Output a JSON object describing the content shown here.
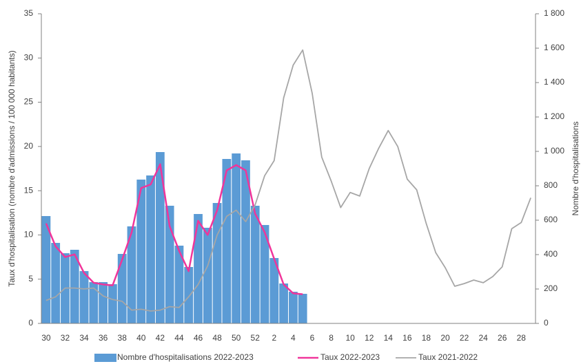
{
  "chart_data": {
    "type": "combo",
    "y_label": "Taux d'hospitalisation (nombre d'admissions / 100 000 habitants)",
    "y2_label": "Nombre d'hospitalisations",
    "categories": [
      30,
      null,
      32,
      null,
      34,
      null,
      36,
      null,
      38,
      null,
      40,
      null,
      42,
      null,
      44,
      null,
      46,
      null,
      48,
      null,
      50,
      null,
      52,
      null,
      2,
      null,
      4,
      null,
      6,
      null,
      8,
      null,
      10,
      null,
      12,
      null,
      14,
      null,
      16,
      null,
      18,
      null,
      20,
      null,
      22,
      null,
      24,
      null,
      26,
      null,
      28,
      null
    ],
    "ylim": [
      0,
      35
    ],
    "yticks": [
      0,
      5,
      10,
      15,
      20,
      25,
      30,
      35
    ],
    "y2lim": [
      0,
      1800
    ],
    "y2ticks": [
      0,
      200,
      400,
      600,
      800,
      {
        "value": 1000,
        "label": "1 000"
      },
      {
        "value": 1200,
        "label": "1 200"
      },
      {
        "value": 1400,
        "label": "1 400"
      },
      {
        "value": 1600,
        "label": "1 600"
      },
      {
        "value": 1800,
        "label": "1 800"
      }
    ],
    "series": [
      {
        "name": "Nombre d'hospitalisations 2022-2023",
        "type": "bar",
        "axis": "y2",
        "color": "#5b9bd5",
        "values": [
          624,
          468,
          408,
          428,
          304,
          240,
          240,
          228,
          404,
          564,
          836,
          860,
          996,
          684,
          452,
          328,
          636,
          556,
          700,
          956,
          988,
          948,
          684,
          572,
          380,
          232,
          184,
          172,
          null,
          null,
          null,
          null,
          null,
          null,
          null,
          null,
          null,
          null,
          null,
          null,
          null,
          null,
          null,
          null,
          null,
          null,
          null,
          null,
          null,
          null,
          null,
          null
        ]
      },
      {
        "name": "Taux 2022-2023",
        "type": "line",
        "color": "#f0359a",
        "width": 2.5,
        "values": [
          11.3,
          8.7,
          7.5,
          7.8,
          5.7,
          4.6,
          4.4,
          4.3,
          7.2,
          10.3,
          15.3,
          15.7,
          18.0,
          11.0,
          8.2,
          5.9,
          11.6,
          10.0,
          12.8,
          17.3,
          17.9,
          17.3,
          12.4,
          10.3,
          7.3,
          4.4,
          3.4,
          3.3,
          null,
          null,
          null,
          null,
          null,
          null,
          null,
          null,
          null,
          null,
          null,
          null,
          null,
          null,
          null,
          null,
          null,
          null,
          null,
          null,
          null,
          null,
          null,
          null
        ]
      },
      {
        "name": "Taux 2021-2022",
        "type": "line",
        "color": "#a6a6a6",
        "width": 1.8,
        "values": [
          2.6,
          3.0,
          4.0,
          4.0,
          3.9,
          4.0,
          3.1,
          2.7,
          2.5,
          1.5,
          1.6,
          1.4,
          1.5,
          1.9,
          1.8,
          3.0,
          4.4,
          6.5,
          10.0,
          12.1,
          12.8,
          11.5,
          13.4,
          16.7,
          18.4,
          25.5,
          29.2,
          30.9,
          26.0,
          18.8,
          16.1,
          13.1,
          14.8,
          14.4,
          17.5,
          19.8,
          21.8,
          20.0,
          16.3,
          15.1,
          11.3,
          8.0,
          6.3,
          4.2,
          4.5,
          4.9,
          4.6,
          5.3,
          6.4,
          10.7,
          11.4,
          14.2
        ]
      }
    ]
  }
}
